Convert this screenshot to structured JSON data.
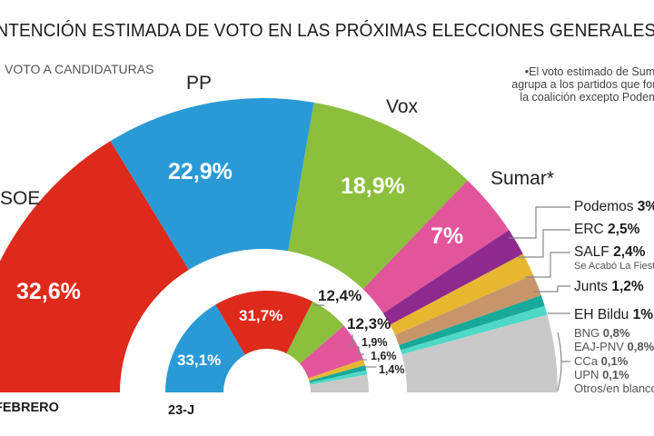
{
  "title": "INTENCIÓN ESTIMADA DE VOTO EN LAS PRÓXIMAS ELECCIONES GENERALES",
  "subtitle": "VOTO A CANDIDATURAS",
  "note": [
    "•El voto estimado de Sumar",
    "agrupa a los partidos que forman",
    "la coalición excepto Podemos"
  ],
  "chart_data": [
    {
      "type": "pie",
      "variant": "half-donut",
      "name": "FEBRERO",
      "footer_label": "FEBRERO",
      "unit": "%",
      "slices": [
        {
          "label": "PSOE",
          "value": 32.6,
          "display": "32,6%",
          "color": "#dd2a1b"
        },
        {
          "label": "PP",
          "value": 22.9,
          "display": "22,9%",
          "color": "#2a9ad6"
        },
        {
          "label": "Vox",
          "value": 18.9,
          "display": "18,9%",
          "color": "#8bbf3c"
        },
        {
          "label": "Sumar*",
          "value": 7,
          "display": "7%",
          "color": "#e2559b"
        },
        {
          "label": "Podemos",
          "value": 3,
          "display": "3%",
          "color": "#8e2a8e"
        },
        {
          "label": "ERC",
          "value": 2.5,
          "display": "2,5%",
          "color": "#e8b730"
        },
        {
          "label": "SALF",
          "value": 2.4,
          "display": "2,4%",
          "color": "#c8956a",
          "sublabel": "Se Acabó La Fiesta"
        },
        {
          "label": "Junts",
          "value": 1.2,
          "display": "1,2%",
          "color": "#17a99a"
        },
        {
          "label": "EH Bildu",
          "value": 1,
          "display": "1%",
          "color": "#4fd8c8"
        },
        {
          "label": "Otros",
          "value": 8.5,
          "display": "",
          "color": "#c9c9c9"
        }
      ],
      "small_parties": [
        {
          "label": "BNG",
          "display": "0,8%",
          "value": 0.8
        },
        {
          "label": "EAJ-PNV",
          "display": "0,8%",
          "value": 0.8
        },
        {
          "label": "CCa",
          "display": "0,1%",
          "value": 0.1
        },
        {
          "label": "UPN",
          "display": "0,1%",
          "value": 0.1
        },
        {
          "label": "Otros/en blanco",
          "display": "",
          "value": null
        }
      ]
    },
    {
      "type": "pie",
      "variant": "half-donut",
      "name": "23-J",
      "footer_label": "23-J",
      "unit": "%",
      "slices": [
        {
          "label": "PP",
          "value": 33.1,
          "display": "33,1%",
          "color": "#2a9ad6"
        },
        {
          "label": "PSOE",
          "value": 31.7,
          "display": "31,7%",
          "color": "#dd2a1b"
        },
        {
          "label": "Vox",
          "value": 12.4,
          "display": "12,4%",
          "color": "#8bbf3c"
        },
        {
          "label": "Sumar",
          "value": 12.3,
          "display": "12,3%",
          "color": "#e2559b"
        },
        {
          "label": "ERC",
          "value": 1.9,
          "display": "1,9%",
          "color": "#e8b730"
        },
        {
          "label": "Junts",
          "value": 1.6,
          "display": "1,6%",
          "color": "#17a99a"
        },
        {
          "label": "EH Bildu",
          "value": 1.4,
          "display": "1,4%",
          "color": "#4fd8c8"
        },
        {
          "label": "Otros",
          "value": 5.6,
          "display": "",
          "color": "#c9c9c9"
        }
      ]
    }
  ]
}
